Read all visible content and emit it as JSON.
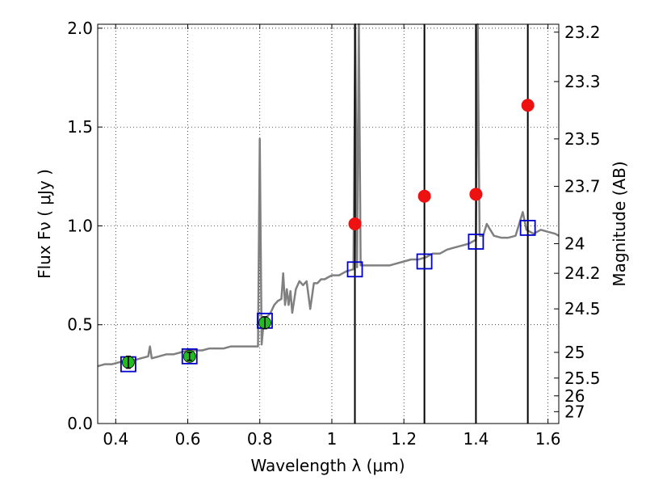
{
  "chart_data": {
    "type": "scatter",
    "xlabel": "Wavelength  λ (μm)",
    "ylabel": "Flux  Fν ( μJy )",
    "ylabel_right": "Magnitude (AB)",
    "xlim": [
      0.35,
      1.63
    ],
    "ylim": [
      0.0,
      2.02
    ],
    "x_ticks": [
      {
        "value": 0.4,
        "label": "0.4"
      },
      {
        "value": 0.6,
        "label": "0.6"
      },
      {
        "value": 0.8,
        "label": "0.8"
      },
      {
        "value": 1.0,
        "label": "1"
      },
      {
        "value": 1.2,
        "label": "1.2"
      },
      {
        "value": 1.4,
        "label": "1.4"
      },
      {
        "value": 1.6,
        "label": "1.6"
      }
    ],
    "y_ticks": [
      {
        "value": 0.0,
        "label": "0.0"
      },
      {
        "value": 0.5,
        "label": "0.5"
      },
      {
        "value": 1.0,
        "label": "1.0"
      },
      {
        "value": 1.5,
        "label": "1.5"
      },
      {
        "value": 2.0,
        "label": "2.0"
      }
    ],
    "magnitude_ticks": [
      {
        "flux": 1.98,
        "label": "23.2"
      },
      {
        "flux": 1.73,
        "label": "23.3"
      },
      {
        "flux": 1.44,
        "label": "23.5"
      },
      {
        "flux": 1.2,
        "label": "23.7"
      },
      {
        "flux": 0.91,
        "label": "24"
      },
      {
        "flux": 0.76,
        "label": "24.2"
      },
      {
        "flux": 0.58,
        "label": "24.5"
      },
      {
        "flux": 0.36,
        "label": "25"
      },
      {
        "flux": 0.23,
        "label": "25.5"
      },
      {
        "flux": 0.14,
        "label": "26"
      },
      {
        "flux": 0.06,
        "label": "27"
      }
    ],
    "grid": true,
    "colors": {
      "spectrum": "#808080",
      "model_box": "#0000cc",
      "observed": "#22bb22",
      "predicted": "#ee1111",
      "filter_line": "#000000"
    },
    "spectrum": [
      [
        0.35,
        0.29
      ],
      [
        0.37,
        0.3
      ],
      [
        0.39,
        0.3
      ],
      [
        0.41,
        0.31
      ],
      [
        0.43,
        0.32
      ],
      [
        0.45,
        0.32
      ],
      [
        0.47,
        0.33
      ],
      [
        0.49,
        0.34
      ],
      [
        0.495,
        0.39
      ],
      [
        0.5,
        0.33
      ],
      [
        0.52,
        0.34
      ],
      [
        0.54,
        0.35
      ],
      [
        0.56,
        0.35
      ],
      [
        0.58,
        0.36
      ],
      [
        0.6,
        0.37
      ],
      [
        0.62,
        0.37
      ],
      [
        0.64,
        0.37
      ],
      [
        0.66,
        0.38
      ],
      [
        0.68,
        0.38
      ],
      [
        0.7,
        0.38
      ],
      [
        0.72,
        0.39
      ],
      [
        0.74,
        0.39
      ],
      [
        0.76,
        0.39
      ],
      [
        0.78,
        0.39
      ],
      [
        0.795,
        0.39
      ],
      [
        0.8,
        1.44
      ],
      [
        0.805,
        0.4
      ],
      [
        0.81,
        0.5
      ],
      [
        0.82,
        0.54
      ],
      [
        0.83,
        0.56
      ],
      [
        0.84,
        0.6
      ],
      [
        0.85,
        0.62
      ],
      [
        0.86,
        0.63
      ],
      [
        0.865,
        0.76
      ],
      [
        0.87,
        0.6
      ],
      [
        0.875,
        0.68
      ],
      [
        0.88,
        0.6
      ],
      [
        0.885,
        0.67
      ],
      [
        0.89,
        0.56
      ],
      [
        0.9,
        0.68
      ],
      [
        0.91,
        0.72
      ],
      [
        0.92,
        0.7
      ],
      [
        0.93,
        0.72
      ],
      [
        0.94,
        0.58
      ],
      [
        0.95,
        0.71
      ],
      [
        0.96,
        0.71
      ],
      [
        0.97,
        0.73
      ],
      [
        0.98,
        0.73
      ],
      [
        0.99,
        0.74
      ],
      [
        1.0,
        0.75
      ],
      [
        1.02,
        0.75
      ],
      [
        1.04,
        0.77
      ],
      [
        1.06,
        0.78
      ],
      [
        1.065,
        2.05
      ],
      [
        1.07,
        0.79
      ],
      [
        1.075,
        2.05
      ],
      [
        1.08,
        0.8
      ],
      [
        1.1,
        0.8
      ],
      [
        1.12,
        0.8
      ],
      [
        1.14,
        0.8
      ],
      [
        1.16,
        0.8
      ],
      [
        1.18,
        0.81
      ],
      [
        1.2,
        0.82
      ],
      [
        1.22,
        0.83
      ],
      [
        1.24,
        0.83
      ],
      [
        1.26,
        0.84
      ],
      [
        1.28,
        0.86
      ],
      [
        1.3,
        0.86
      ],
      [
        1.32,
        0.88
      ],
      [
        1.34,
        0.89
      ],
      [
        1.36,
        0.9
      ],
      [
        1.38,
        0.91
      ],
      [
        1.4,
        0.93
      ],
      [
        1.405,
        2.05
      ],
      [
        1.41,
        0.95
      ],
      [
        1.42,
        0.95
      ],
      [
        1.43,
        1.01
      ],
      [
        1.44,
        0.98
      ],
      [
        1.45,
        0.95
      ],
      [
        1.47,
        0.94
      ],
      [
        1.49,
        0.94
      ],
      [
        1.51,
        0.95
      ],
      [
        1.53,
        1.07
      ],
      [
        1.54,
        0.98
      ],
      [
        1.56,
        0.96
      ],
      [
        1.58,
        0.98
      ],
      [
        1.6,
        0.97
      ],
      [
        1.62,
        0.96
      ],
      [
        1.63,
        0.95
      ]
    ],
    "model_boxes": [
      {
        "x": 0.435,
        "y": 0.3
      },
      {
        "x": 0.605,
        "y": 0.34
      },
      {
        "x": 0.814,
        "y": 0.52
      },
      {
        "x": 1.064,
        "y": 0.78
      },
      {
        "x": 1.257,
        "y": 0.82
      },
      {
        "x": 1.4,
        "y": 0.92
      },
      {
        "x": 1.544,
        "y": 0.99
      }
    ],
    "observed": [
      {
        "x": 0.435,
        "y": 0.31,
        "err": 0.03
      },
      {
        "x": 0.605,
        "y": 0.34,
        "err": 0.02
      },
      {
        "x": 0.814,
        "y": 0.51,
        "err": 0.03
      }
    ],
    "predicted": [
      {
        "x": 1.064,
        "y": 1.01
      },
      {
        "x": 1.257,
        "y": 1.15
      },
      {
        "x": 1.4,
        "y": 1.16
      },
      {
        "x": 1.544,
        "y": 1.61
      }
    ],
    "filter_lines": [
      1.064,
      1.257,
      1.4,
      1.544
    ]
  }
}
